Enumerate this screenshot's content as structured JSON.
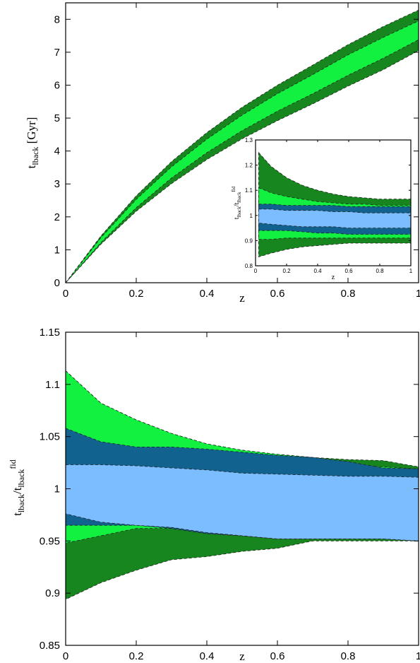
{
  "colors": {
    "dark_green": "#18861e",
    "light_green": "#13f140",
    "dark_blue": "#11628f",
    "light_blue": "#7cbdff"
  },
  "chart_data": [
    {
      "id": "top",
      "type": "area",
      "xlabel": "z",
      "ylabel": "t_lback [Gyr]",
      "ylabel_parts": {
        "main": "t",
        "sub": "lback",
        "suffix": " [Gyr]"
      },
      "xlim": [
        0,
        1
      ],
      "ylim": [
        0,
        8.5
      ],
      "xticks": [
        0,
        0.2,
        0.4,
        0.6,
        0.8,
        1
      ],
      "xtick_labels": [
        "0",
        "0.2",
        "0.4",
        "0.6",
        "0.8",
        "1"
      ],
      "yticks": [
        0,
        1,
        2,
        3,
        4,
        5,
        6,
        7,
        8
      ],
      "ytick_labels": [
        "0",
        "1",
        "2",
        "3",
        "4",
        "5",
        "6",
        "7",
        "8"
      ],
      "x": [
        0,
        0.1,
        0.2,
        0.3,
        0.4,
        0.5,
        0.6,
        0.7,
        0.8,
        0.9,
        1.0
      ],
      "series": [
        {
          "color": "dark_green",
          "lower": [
            0,
            1.17,
            2.17,
            3.01,
            3.74,
            4.37,
            4.92,
            5.43,
            5.97,
            6.47,
            7.05
          ],
          "upper": [
            0,
            1.42,
            2.64,
            3.68,
            4.56,
            5.33,
            6.0,
            6.61,
            7.23,
            7.78,
            8.28
          ]
        },
        {
          "color": "light_green",
          "lower": [
            0,
            1.22,
            2.28,
            3.18,
            3.95,
            4.62,
            5.21,
            5.74,
            6.3,
            6.82,
            7.38
          ],
          "upper": [
            0,
            1.37,
            2.53,
            3.52,
            4.36,
            5.09,
            5.74,
            6.32,
            6.92,
            7.45,
            7.95
          ]
        }
      ]
    },
    {
      "id": "inset",
      "type": "area",
      "xlabel": "z",
      "ylabel_parts": {
        "a": "t",
        "a_sub": "lback",
        "b": "/t",
        "b_sub": "lback",
        "b_sup": "fid"
      },
      "xlim": [
        0,
        1
      ],
      "ylim": [
        0.8,
        1.3
      ],
      "xticks": [
        0,
        0.2,
        0.4,
        0.6,
        0.8,
        1
      ],
      "xtick_labels": [
        "0",
        "0.2",
        "0.4",
        "0.6",
        "0.8",
        "1"
      ],
      "yticks": [
        0.8,
        0.9,
        1,
        1.1,
        1.2,
        1.3
      ],
      "ytick_labels": [
        "0.8",
        "0.9",
        "1",
        "1.1",
        "1.2",
        "1.3"
      ],
      "x": [
        0.02,
        0.1,
        0.2,
        0.3,
        0.4,
        0.5,
        0.6,
        0.7,
        0.8,
        0.9,
        1.0
      ],
      "series": [
        {
          "color": "dark_green",
          "lower": [
            0.835,
            0.85,
            0.865,
            0.875,
            0.88,
            0.885,
            0.89,
            0.89,
            0.89,
            0.89,
            0.89
          ],
          "upper": [
            1.25,
            1.195,
            1.15,
            1.12,
            1.1,
            1.085,
            1.075,
            1.07,
            1.065,
            1.065,
            1.065
          ]
        },
        {
          "color": "light_green",
          "lower": [
            0.905,
            0.905,
            0.91,
            0.91,
            0.91,
            0.91,
            0.91,
            0.91,
            0.91,
            0.91,
            0.91
          ],
          "upper": [
            1.11,
            1.09,
            1.075,
            1.065,
            1.055,
            1.05,
            1.045,
            1.045,
            1.04,
            1.04,
            1.04
          ]
        },
        {
          "color": "dark_blue",
          "lower": [
            0.94,
            0.94,
            0.94,
            0.935,
            0.93,
            0.93,
            0.925,
            0.925,
            0.925,
            0.925,
            0.925
          ],
          "upper": [
            1.045,
            1.045,
            1.04,
            1.04,
            1.04,
            1.04,
            1.035,
            1.035,
            1.035,
            1.035,
            1.035
          ]
        },
        {
          "color": "light_blue",
          "lower": [
            0.97,
            0.965,
            0.96,
            0.955,
            0.955,
            0.955,
            0.95,
            0.95,
            0.95,
            0.95,
            0.95
          ],
          "upper": [
            1.025,
            1.025,
            1.02,
            1.02,
            1.02,
            1.015,
            1.015,
            1.01,
            1.01,
            1.01,
            1.01
          ]
        }
      ]
    },
    {
      "id": "bottom",
      "type": "area",
      "xlabel": "z",
      "ylabel_parts": {
        "a": "t",
        "a_sub": "lback",
        "b": "/t",
        "b_sub": "lback",
        "b_sup": "fid"
      },
      "xlim": [
        0,
        1
      ],
      "ylim": [
        0.85,
        1.15
      ],
      "xticks": [
        0,
        0.2,
        0.4,
        0.6,
        0.8,
        1
      ],
      "xtick_labels": [
        "0",
        "0.2",
        "0.4",
        "0.6",
        "0.8",
        "1"
      ],
      "yticks": [
        0.85,
        0.9,
        0.95,
        1,
        1.05,
        1.1,
        1.15
      ],
      "ytick_labels": [
        "0.85",
        "0.9",
        "0.95",
        "1",
        "1.05",
        "1.1",
        "1.15"
      ],
      "x": [
        0,
        0.1,
        0.2,
        0.3,
        0.4,
        0.5,
        0.6,
        0.7,
        0.8,
        0.9,
        1.0
      ],
      "series": [
        {
          "color": "dark_green",
          "lower": [
            0.894,
            0.91,
            0.922,
            0.932,
            0.935,
            0.94,
            0.943,
            0.95,
            0.95,
            0.95,
            0.95
          ],
          "upper": [
            1.113,
            1.082,
            1.066,
            1.053,
            1.043,
            1.037,
            1.033,
            1.03,
            1.028,
            1.027,
            1.021
          ]
        },
        {
          "color": "light_green",
          "lower": [
            0.948,
            0.955,
            0.962,
            0.962,
            0.957,
            0.955,
            0.952,
            0.952,
            0.952,
            0.952,
            0.952
          ],
          "upper": [
            1.113,
            1.082,
            1.066,
            1.053,
            1.043,
            1.037,
            1.033,
            1.03,
            1.023,
            1.021,
            1.019
          ]
        },
        {
          "color": "dark_blue",
          "lower": [
            0.965,
            0.965,
            0.965,
            0.962,
            0.957,
            0.955,
            0.952,
            0.952,
            0.952,
            0.952,
            0.95
          ],
          "upper": [
            1.058,
            1.045,
            1.04,
            1.04,
            1.038,
            1.035,
            1.032,
            1.03,
            1.026,
            1.02,
            1.019
          ]
        },
        {
          "color": "light_blue",
          "lower": [
            0.976,
            0.968,
            0.965,
            0.963,
            0.958,
            0.955,
            0.952,
            0.952,
            0.952,
            0.952,
            0.95
          ],
          "upper": [
            1.023,
            1.023,
            1.022,
            1.02,
            1.018,
            1.015,
            1.014,
            1.013,
            1.012,
            1.012,
            1.011
          ]
        }
      ]
    }
  ]
}
